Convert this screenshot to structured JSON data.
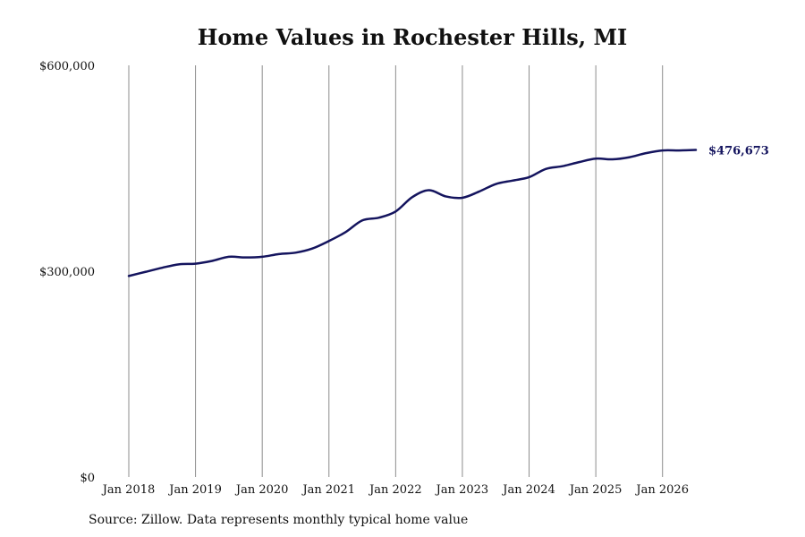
{
  "chart_data": {
    "type": "line",
    "title": "Home Values in Rochester Hills, MI",
    "xlabel": "",
    "ylabel": "",
    "ylim": [
      0,
      600000
    ],
    "y_ticks": [
      {
        "value": 0,
        "label": "$0"
      },
      {
        "value": 300000,
        "label": "$300,000"
      },
      {
        "value": 600000,
        "label": "$600,000"
      }
    ],
    "x_range": [
      2018.0,
      2026.5
    ],
    "x_ticks": [
      {
        "value": 2018,
        "label": "Jan 2018"
      },
      {
        "value": 2019,
        "label": "Jan 2019"
      },
      {
        "value": 2020,
        "label": "Jan 2020"
      },
      {
        "value": 2021,
        "label": "Jan 2021"
      },
      {
        "value": 2022,
        "label": "Jan 2022"
      },
      {
        "value": 2023,
        "label": "Jan 2023"
      },
      {
        "value": 2024,
        "label": "Jan 2024"
      },
      {
        "value": 2025,
        "label": "Jan 2025"
      },
      {
        "value": 2026,
        "label": "Jan 2026"
      }
    ],
    "grid": "vertical",
    "legend": "none",
    "series_color": "#14145e",
    "grid_color": "#8c8c8c",
    "series": [
      {
        "x": [
          2018.0,
          2018.25,
          2018.5,
          2018.75,
          2019.0,
          2019.25,
          2019.5,
          2019.75,
          2020.0,
          2020.25,
          2020.5,
          2020.75,
          2021.0,
          2021.25,
          2021.5,
          2021.75,
          2022.0,
          2022.25,
          2022.5,
          2022.75,
          2023.0,
          2023.25,
          2023.5,
          2023.75,
          2024.0,
          2024.25,
          2024.5,
          2024.75,
          2025.0,
          2025.25,
          2025.5,
          2025.75,
          2026.0,
          2026.25,
          2026.5
        ],
        "values": [
          293000,
          299000,
          305000,
          310000,
          311000,
          315000,
          321000,
          320000,
          321000,
          325000,
          327000,
          333000,
          344000,
          357000,
          374000,
          378000,
          387000,
          408000,
          418000,
          409000,
          407000,
          416000,
          427000,
          432000,
          437000,
          449000,
          453000,
          459000,
          464000,
          463000,
          466000,
          472000,
          476000,
          476000,
          476673
        ]
      }
    ],
    "annotations": [
      {
        "x": 2026.5,
        "value": 476673,
        "label": "$476,673"
      }
    ]
  },
  "source_note": "Source: Zillow. Data represents monthly typical home value"
}
